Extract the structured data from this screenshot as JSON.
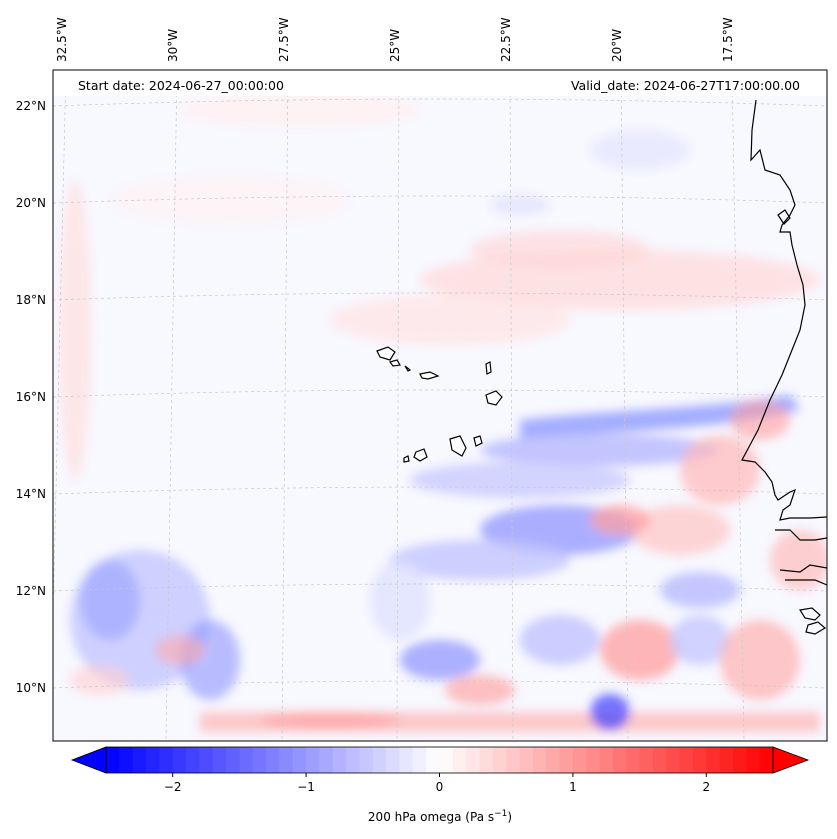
{
  "map": {
    "start_date": "Start date: 2024-06-27_00:00:00",
    "valid_date": "Valid_date: 2024-06-27T17:00:00.00",
    "lon_labels": [
      "32.5°W",
      "30°W",
      "27.5°W",
      "25°W",
      "22.5°W",
      "20°W",
      "17.5°W"
    ],
    "lat_labels": [
      "22°N",
      "20°N",
      "18°N",
      "16°N",
      "14°N",
      "12°N",
      "10°N"
    ],
    "field": "200 hPa omega",
    "colormap": "bwr",
    "colors": {
      "negative": "#0000ff",
      "zero": "#ffffff",
      "positive": "#ff0000",
      "coast": "#000000",
      "grid": "#c8c8c8"
    }
  },
  "colorbar": {
    "label": "200 hPa omega (Pa s",
    "label_sup": "−1",
    "label_end": ")",
    "ticks": [
      "−2",
      "−1",
      "0",
      "1",
      "2"
    ],
    "tick_values": [
      -2,
      -1,
      0,
      1,
      2
    ],
    "range": [
      -2.5,
      2.5
    ],
    "extend": "both"
  }
}
